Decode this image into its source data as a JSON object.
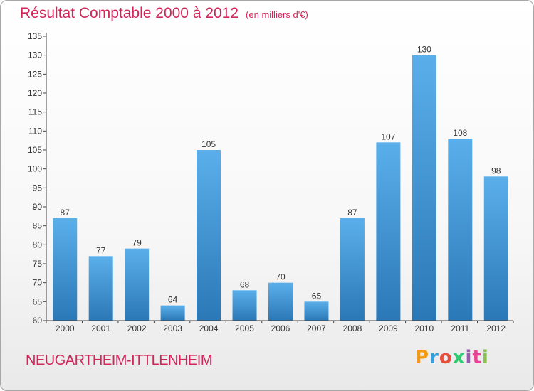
{
  "header": {
    "title": "Résultat Comptable 2000 à 2012",
    "subtitle": "(en milliers d'€)"
  },
  "footer": {
    "place": "NEUGARTHEIM-ITTLENHEIM",
    "logo_letters": [
      "P",
      "r",
      "o",
      "x",
      "i",
      "t",
      "i"
    ],
    "logo_colors": [
      "#f39c12",
      "#3aa0dc",
      "#e74c3c",
      "#2ecc71",
      "#9b59b6",
      "#e84393",
      "#8bc34a"
    ]
  },
  "chart_data": {
    "type": "bar",
    "categories": [
      "2000",
      "2001",
      "2002",
      "2003",
      "2004",
      "2005",
      "2006",
      "2007",
      "2008",
      "2009",
      "2010",
      "2011",
      "2012"
    ],
    "values": [
      87,
      77,
      79,
      64,
      105,
      68,
      70,
      65,
      87,
      107,
      130,
      108,
      98
    ],
    "ylim": [
      60,
      135
    ],
    "yticks": [
      60,
      65,
      70,
      75,
      80,
      85,
      90,
      95,
      100,
      105,
      110,
      115,
      120,
      125,
      130,
      135
    ],
    "grid": false,
    "bar_color_top": "#5aafea",
    "bar_color_bottom": "#2b78b6",
    "axis_color": "#444444",
    "text_color": "#333333"
  }
}
